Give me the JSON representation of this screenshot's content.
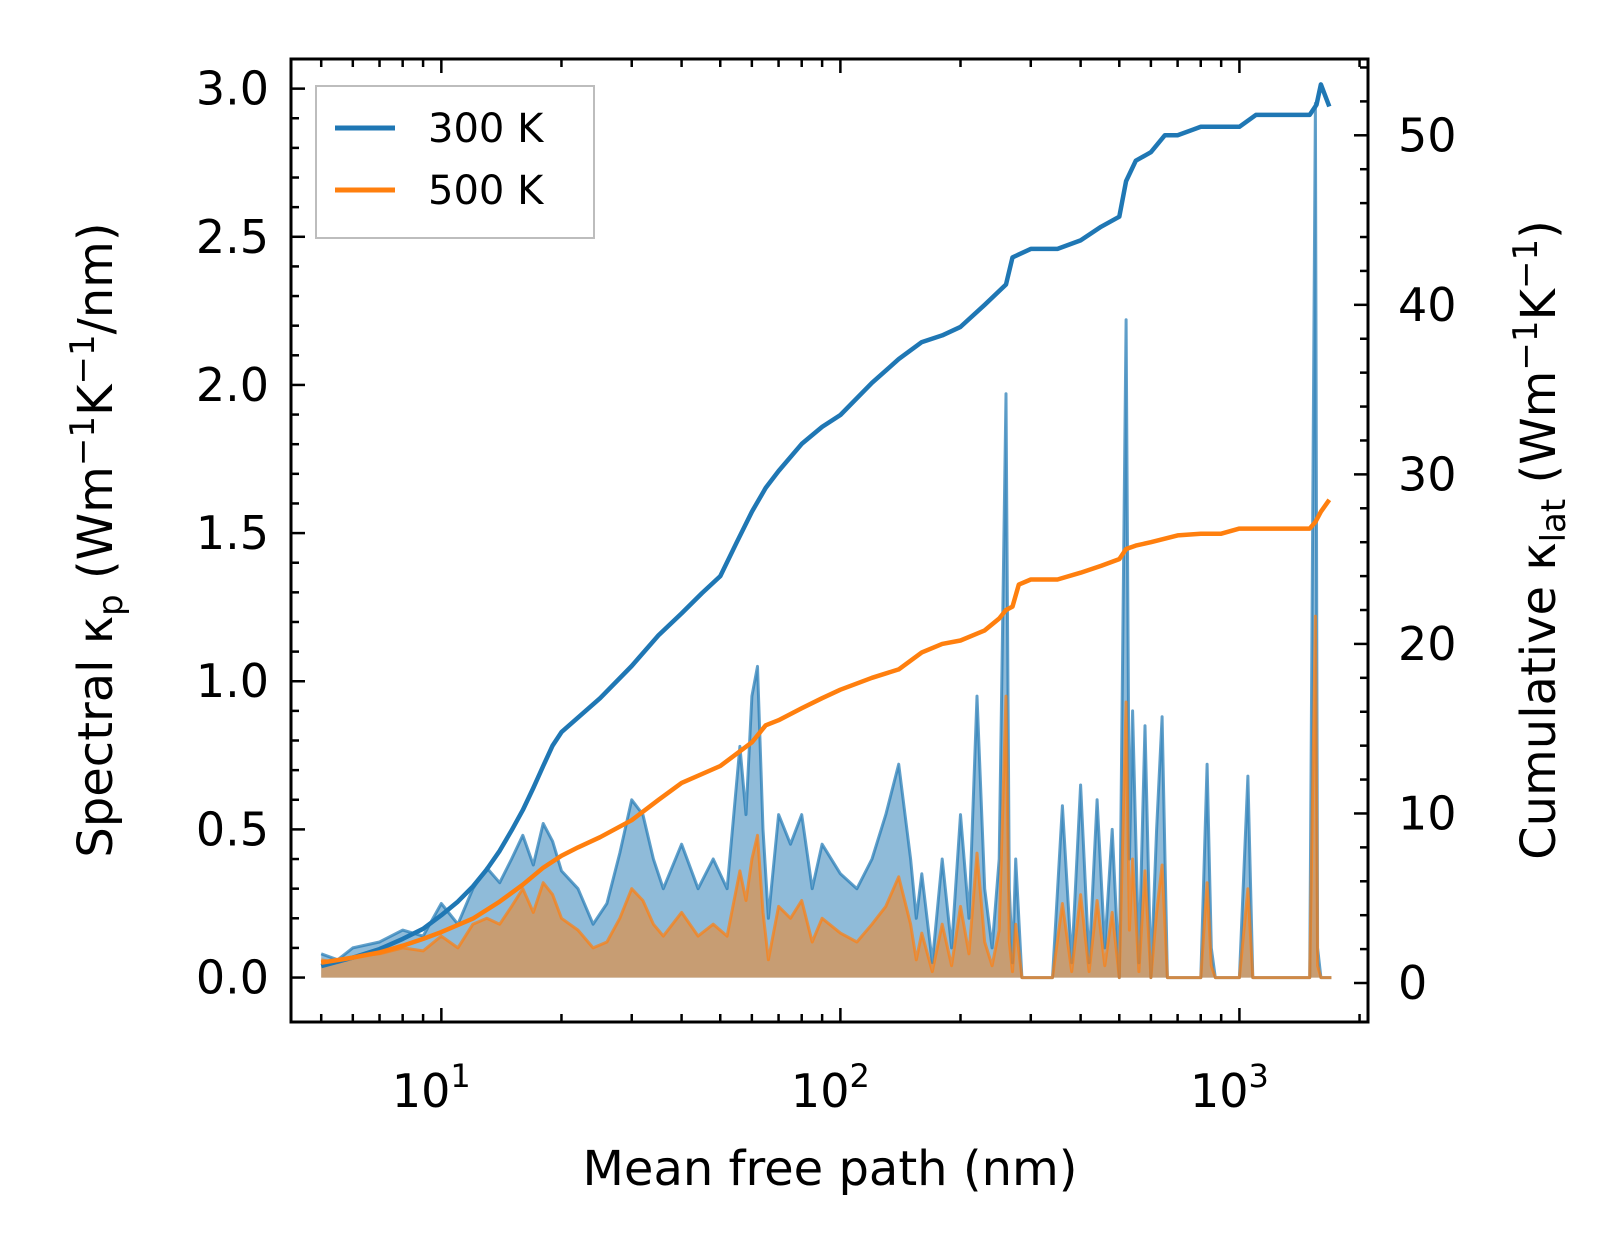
{
  "chart_data": {
    "type": "line",
    "x_scale": "log",
    "xlabel": "Mean free path (nm)",
    "ylabel_left": "Spectral κp (Wm−1K−1/nm)",
    "ylabel_left_parts": {
      "prefix": "Spectral κ",
      "sub": "p",
      "mid1": " (Wm",
      "sup1": "−1",
      "mid2": "K",
      "sup2": "−1",
      "suffix": "/nm)"
    },
    "ylabel_right": "Cumulative κlat (Wm−1K−1)",
    "ylabel_right_parts": {
      "prefix": "Cumulative κ",
      "sub": "lat",
      "mid1": " (Wm",
      "sup1": "−1",
      "mid2": "K",
      "sup2": "−1",
      "suffix": ")"
    },
    "xlim": [
      4.2,
      2100
    ],
    "ylim_left": [
      -0.15,
      3.1
    ],
    "ylim_right": [
      -2.3,
      54.5
    ],
    "x_ticks": [
      {
        "value": 10,
        "base": "10",
        "exp": "1"
      },
      {
        "value": 100,
        "base": "10",
        "exp": "2"
      },
      {
        "value": 1000,
        "base": "10",
        "exp": "3"
      }
    ],
    "y_left_ticks": [
      {
        "value": 0.0,
        "label": "0.0"
      },
      {
        "value": 0.5,
        "label": "0.5"
      },
      {
        "value": 1.0,
        "label": "1.0"
      },
      {
        "value": 1.5,
        "label": "1.5"
      },
      {
        "value": 2.0,
        "label": "2.0"
      },
      {
        "value": 2.5,
        "label": "2.5"
      },
      {
        "value": 3.0,
        "label": "3.0"
      }
    ],
    "y_right_ticks": [
      {
        "value": 0,
        "label": "0"
      },
      {
        "value": 10,
        "label": "10"
      },
      {
        "value": 20,
        "label": "20"
      },
      {
        "value": 30,
        "label": "30"
      },
      {
        "value": 40,
        "label": "40"
      },
      {
        "value": 50,
        "label": "50"
      }
    ],
    "legend": {
      "position": "top-left",
      "entries": [
        "300 K",
        "500 K"
      ]
    },
    "grid": false,
    "series": [
      {
        "name": "300 K",
        "color": "#1f77b4",
        "cumulative": {
          "x": [
            5,
            6,
            7,
            8,
            9,
            10,
            11,
            12,
            13,
            14,
            15,
            16,
            17,
            18,
            19,
            20,
            25,
            30,
            35,
            40,
            45,
            50,
            55,
            60,
            65,
            70,
            80,
            90,
            100,
            120,
            140,
            160,
            180,
            200,
            230,
            260,
            270,
            300,
            350,
            400,
            450,
            500,
            520,
            550,
            600,
            650,
            700,
            800,
            900,
            1000,
            1100,
            1200,
            1500,
            1560,
            1600,
            1680
          ],
          "values": [
            1.0,
            1.5,
            2.0,
            2.6,
            3.2,
            4.0,
            4.8,
            5.7,
            6.7,
            7.8,
            9.0,
            10.2,
            11.5,
            12.8,
            14.0,
            14.8,
            16.8,
            18.7,
            20.5,
            21.8,
            23.0,
            24.0,
            26.0,
            27.8,
            29.2,
            30.2,
            31.8,
            32.8,
            33.5,
            35.4,
            36.8,
            37.8,
            38.2,
            38.7,
            40.0,
            41.2,
            42.8,
            43.3,
            43.3,
            43.8,
            44.6,
            45.2,
            47.3,
            48.5,
            49.0,
            50.0,
            50.0,
            50.5,
            50.5,
            50.5,
            51.2,
            51.2,
            51.2,
            51.8,
            53.0,
            51.7
          ]
        },
        "spectral": {
          "x": [
            5,
            5.5,
            6,
            7,
            8,
            9,
            10,
            11,
            12,
            13,
            14,
            15,
            16,
            17,
            18,
            19,
            20,
            22,
            24,
            26,
            28,
            30,
            32,
            34,
            36,
            40,
            44,
            48,
            52,
            56,
            58,
            60,
            62,
            64,
            66,
            70,
            75,
            80,
            85,
            90,
            100,
            110,
            120,
            130,
            140,
            150,
            155,
            160,
            170,
            180,
            190,
            200,
            210,
            220,
            230,
            240,
            250,
            260,
            265,
            270,
            275,
            285,
            300,
            320,
            340,
            360,
            380,
            400,
            420,
            440,
            460,
            480,
            500,
            520,
            530,
            540,
            560,
            580,
            600,
            620,
            640,
            660,
            680,
            700,
            750,
            800,
            830,
            850,
            870,
            900,
            1000,
            1050,
            1080,
            1100,
            1200,
            1400,
            1500,
            1550,
            1570,
            1600,
            1650,
            1700
          ],
          "values": [
            0.08,
            0.06,
            0.1,
            0.12,
            0.16,
            0.14,
            0.25,
            0.18,
            0.3,
            0.37,
            0.32,
            0.4,
            0.48,
            0.38,
            0.52,
            0.46,
            0.36,
            0.3,
            0.18,
            0.25,
            0.42,
            0.6,
            0.55,
            0.4,
            0.3,
            0.45,
            0.3,
            0.4,
            0.3,
            0.78,
            0.55,
            0.95,
            1.05,
            0.5,
            0.2,
            0.55,
            0.45,
            0.55,
            0.3,
            0.45,
            0.35,
            0.3,
            0.4,
            0.55,
            0.72,
            0.4,
            0.2,
            0.35,
            0.05,
            0.4,
            0.1,
            0.55,
            0.2,
            0.95,
            0.3,
            0.1,
            0.4,
            1.97,
            0.3,
            0.05,
            0.4,
            0.0,
            0.0,
            0.0,
            0.0,
            0.58,
            0.05,
            0.65,
            0.05,
            0.6,
            0.1,
            0.5,
            0.0,
            2.22,
            0.4,
            0.9,
            0.05,
            0.85,
            0.0,
            0.5,
            0.88,
            0.0,
            0.0,
            0.0,
            0.0,
            0.0,
            0.72,
            0.1,
            0.0,
            0.0,
            0.0,
            0.68,
            0.0,
            0.0,
            0.0,
            0.0,
            0.0,
            2.95,
            0.1,
            0.0,
            0.0,
            0.0
          ]
        }
      },
      {
        "name": "500 K",
        "color": "#ff7f0e",
        "cumulative": {
          "x": [
            5,
            6,
            7,
            8,
            9,
            10,
            12,
            14,
            16,
            18,
            20,
            22,
            25,
            30,
            35,
            40,
            50,
            60,
            65,
            70,
            80,
            90,
            100,
            120,
            140,
            160,
            180,
            200,
            230,
            250,
            260,
            270,
            280,
            300,
            350,
            400,
            450,
            500,
            520,
            550,
            600,
            700,
            800,
            900,
            1000,
            1100,
            1200,
            1500,
            1550,
            1600,
            1680
          ],
          "values": [
            1.2,
            1.5,
            1.8,
            2.2,
            2.6,
            3.0,
            3.8,
            4.8,
            5.8,
            6.8,
            7.5,
            8.0,
            8.6,
            9.6,
            10.8,
            11.8,
            12.8,
            14.2,
            15.2,
            15.5,
            16.2,
            16.8,
            17.3,
            18.0,
            18.5,
            19.5,
            20.0,
            20.2,
            20.8,
            21.5,
            22.0,
            22.2,
            23.5,
            23.8,
            23.8,
            24.2,
            24.6,
            25.0,
            25.6,
            25.8,
            26.0,
            26.4,
            26.5,
            26.5,
            26.8,
            26.8,
            26.8,
            26.8,
            27.2,
            27.8,
            28.5
          ]
        },
        "spectral": {
          "x": [
            5,
            5.5,
            6,
            7,
            8,
            9,
            10,
            11,
            12,
            13,
            14,
            15,
            16,
            17,
            18,
            19,
            20,
            22,
            24,
            26,
            28,
            30,
            32,
            34,
            36,
            40,
            44,
            48,
            52,
            56,
            58,
            60,
            62,
            64,
            66,
            70,
            75,
            80,
            85,
            90,
            100,
            110,
            120,
            130,
            140,
            150,
            155,
            160,
            170,
            180,
            190,
            200,
            210,
            220,
            230,
            240,
            250,
            260,
            265,
            270,
            275,
            285,
            300,
            320,
            340,
            360,
            380,
            400,
            420,
            440,
            460,
            480,
            500,
            520,
            530,
            540,
            560,
            580,
            600,
            620,
            640,
            660,
            680,
            700,
            750,
            800,
            830,
            850,
            870,
            900,
            1000,
            1050,
            1080,
            1100,
            1200,
            1400,
            1500,
            1550,
            1570,
            1600,
            1650,
            1700
          ],
          "values": [
            0.06,
            0.05,
            0.07,
            0.08,
            0.1,
            0.09,
            0.14,
            0.1,
            0.18,
            0.2,
            0.18,
            0.24,
            0.3,
            0.22,
            0.32,
            0.28,
            0.2,
            0.16,
            0.1,
            0.12,
            0.2,
            0.3,
            0.26,
            0.18,
            0.14,
            0.22,
            0.14,
            0.18,
            0.14,
            0.36,
            0.26,
            0.4,
            0.48,
            0.22,
            0.06,
            0.24,
            0.2,
            0.26,
            0.12,
            0.2,
            0.15,
            0.12,
            0.18,
            0.24,
            0.34,
            0.18,
            0.06,
            0.15,
            0.02,
            0.18,
            0.04,
            0.24,
            0.08,
            0.42,
            0.12,
            0.04,
            0.16,
            0.95,
            0.12,
            0.02,
            0.18,
            0.0,
            0.0,
            0.0,
            0.0,
            0.25,
            0.02,
            0.28,
            0.02,
            0.26,
            0.04,
            0.22,
            0.0,
            0.93,
            0.16,
            0.4,
            0.02,
            0.36,
            0.0,
            0.22,
            0.38,
            0.0,
            0.0,
            0.0,
            0.0,
            0.0,
            0.32,
            0.04,
            0.0,
            0.0,
            0.0,
            0.3,
            0.0,
            0.0,
            0.0,
            0.0,
            0.0,
            1.22,
            0.04,
            0.0,
            0.0,
            0.0
          ]
        }
      }
    ]
  }
}
